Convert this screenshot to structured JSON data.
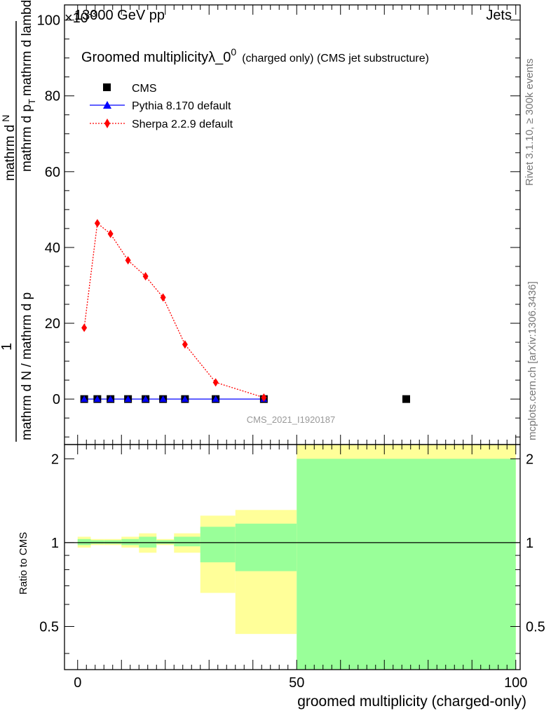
{
  "header": {
    "energy_label": "13000 GeV pp",
    "process_label": "Jets",
    "multiplier": "×10",
    "multiplier_exp": "-3"
  },
  "side_labels": {
    "rivet": "Rivet 3.1.10, ≥ 300k events",
    "mcplots": "mcplots.cern.ch [arXiv:1306.3436]"
  },
  "chart_data": {
    "type": "line",
    "title_main": "Groomed multiplicityλ_0",
    "title_sup": "0",
    "title_sub": "(charged only) (CMS jet substructure)",
    "analysis_id": "CMS_2021_I1920187",
    "xlabel": "groomed multiplicity (charged-only)",
    "ylabel_num": "1",
    "ylabel_den": "mathrm d N / mathrm d p",
    "ylabel_num2": "mathrm d",
    "ylabel_top": "mathrm d",
    "ylabel_top_N": "N",
    "ylabel_den2": "mathrm d p",
    "ylabel_den3": "mathrm d lambda",
    "ylabel_sub": "T",
    "ylabel_ratio": "Ratio to CMS",
    "xlim": [
      -3,
      101
    ],
    "ylim": [
      -12,
      104
    ],
    "ratio_ylim": [
      0.35,
      2.25
    ],
    "x_ticks": [
      0,
      50,
      100
    ],
    "x_tick_labels": [
      "0",
      "50",
      "100"
    ],
    "y_ticks": [
      0,
      20,
      40,
      60,
      80,
      100
    ],
    "y_tick_labels": [
      "0",
      "20",
      "40",
      "60",
      "80",
      "100"
    ],
    "ratio_ticks": [
      0.5,
      1,
      2
    ],
    "ratio_tick_labels": [
      "0.5",
      "1",
      "2"
    ],
    "series": [
      {
        "name": "CMS",
        "color": "#000000",
        "marker": "square",
        "x": [
          1.5,
          4.5,
          7.5,
          11.5,
          15.5,
          19.5,
          24.5,
          31.5,
          42.5,
          75
        ],
        "y": [
          0,
          0,
          0,
          0,
          0,
          0,
          0,
          0,
          0,
          0
        ]
      },
      {
        "name": "Pythia 8.170 default",
        "color": "#0000ff",
        "marker": "triangle",
        "x": [
          1.5,
          4.5,
          7.5,
          11.5,
          15.5,
          19.5,
          24.5,
          31.5,
          42.5
        ],
        "y": [
          0,
          0,
          0,
          0,
          0,
          0,
          0,
          0,
          0
        ]
      },
      {
        "name": "Sherpa 2.2.9 default",
        "color": "#ff0000",
        "marker": "diamond",
        "x": [
          1.5,
          4.5,
          7.5,
          11.5,
          15.5,
          19.5,
          24.5,
          31.5,
          42.5
        ],
        "y": [
          18.8,
          46.4,
          43.6,
          36.6,
          32.4,
          26.8,
          14.4,
          4.4,
          0.4
        ]
      }
    ],
    "ratio_bands": [
      {
        "x0": 0,
        "x1": 3,
        "stat_lo": 0.98,
        "stat_hi": 1.03,
        "sys_lo": 0.96,
        "sys_hi": 1.05
      },
      {
        "x0": 3,
        "x1": 6,
        "stat_lo": 0.99,
        "stat_hi": 1.02,
        "sys_lo": 0.98,
        "sys_hi": 1.03
      },
      {
        "x0": 6,
        "x1": 10,
        "stat_lo": 0.99,
        "stat_hi": 1.02,
        "sys_lo": 0.98,
        "sys_hi": 1.03
      },
      {
        "x0": 10,
        "x1": 14,
        "stat_lo": 0.98,
        "stat_hi": 1.03,
        "sys_lo": 0.96,
        "sys_hi": 1.05
      },
      {
        "x0": 14,
        "x1": 18,
        "stat_lo": 0.96,
        "stat_hi": 1.05,
        "sys_lo": 0.92,
        "sys_hi": 1.08
      },
      {
        "x0": 18,
        "x1": 22,
        "stat_lo": 0.99,
        "stat_hi": 1.02,
        "sys_lo": 0.98,
        "sys_hi": 1.03
      },
      {
        "x0": 22,
        "x1": 28,
        "stat_lo": 0.97,
        "stat_hi": 1.05,
        "sys_lo": 0.92,
        "sys_hi": 1.08
      },
      {
        "x0": 28,
        "x1": 36,
        "stat_lo": 0.85,
        "stat_hi": 1.14,
        "sys_lo": 0.66,
        "sys_hi": 1.25
      },
      {
        "x0": 36,
        "x1": 50,
        "stat_lo": 0.79,
        "stat_hi": 1.17,
        "sys_lo": 0.47,
        "sys_hi": 1.31
      },
      {
        "x0": 50,
        "x1": 100,
        "stat_lo": 0.35,
        "stat_hi": 2.0,
        "sys_lo": 0.35,
        "sys_hi": 2.25
      }
    ],
    "band_colors": {
      "stat": "#99ff99",
      "sys": "#ffff99"
    }
  }
}
